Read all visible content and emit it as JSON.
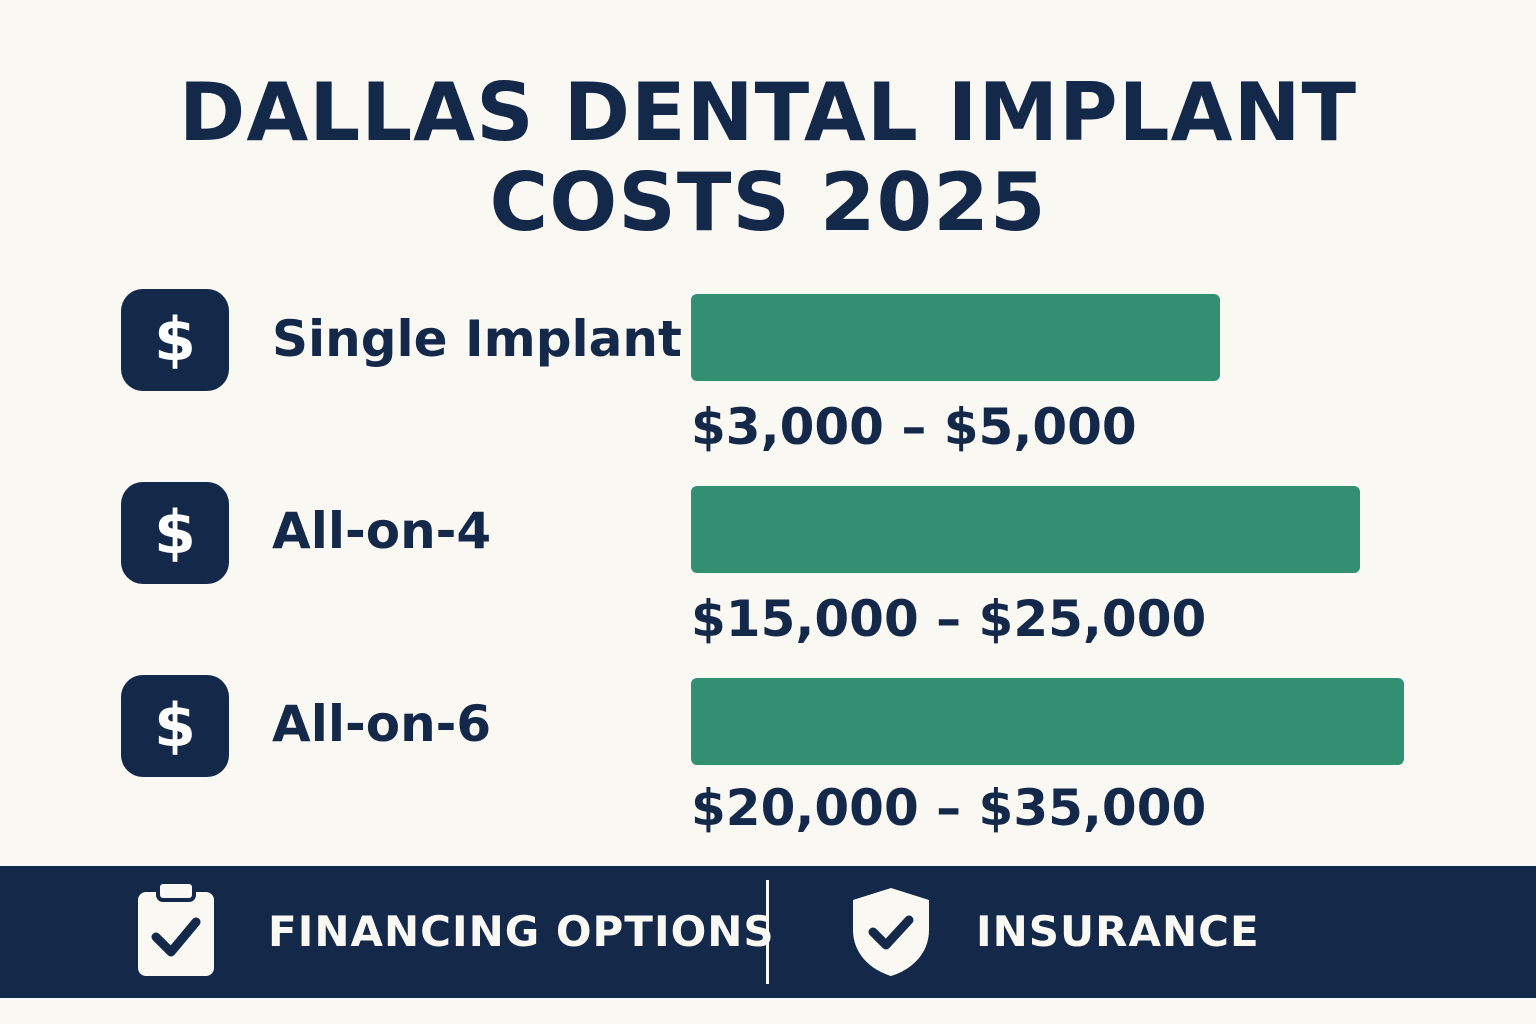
{
  "title_line1": "DALLAS DENTAL IMPLANT",
  "title_line2": "COSTS 2025",
  "chart_data": {
    "type": "bar",
    "orientation": "horizontal",
    "categories": [
      "Single Implant",
      "All-on-4",
      "All-on-6"
    ],
    "ranges": [
      {
        "low": 3000,
        "high": 5000,
        "label": "$3,000 – $5,000"
      },
      {
        "low": 15000,
        "high": 25000,
        "label": "$15,000 – $25,000"
      },
      {
        "low": 20000,
        "high": 35000,
        "label": "$20,000 – $35,000"
      }
    ],
    "bar_color": "#328f72"
  },
  "rows": [
    {
      "icon": "dollar-icon",
      "icon_glyph": "$",
      "label": "Single Implant",
      "range": "$3,000 – $5,000"
    },
    {
      "icon": "dollar-icon",
      "icon_glyph": "$",
      "label": "All-on-4",
      "range": "$15,000 – $25,000"
    },
    {
      "icon": "dollar-icon",
      "icon_glyph": "$",
      "label": "All-on-6",
      "range": "$20,000 – $35,000"
    }
  ],
  "footer": {
    "financing_label": "FINANCING OPTIONS",
    "financing_icon": "clipboard-check-icon",
    "insurance_label": "INSURANCE",
    "insurance_icon": "shield-check-icon"
  },
  "colors": {
    "navy": "#14294a",
    "green": "#328f72",
    "background": "#f9f8f3"
  }
}
